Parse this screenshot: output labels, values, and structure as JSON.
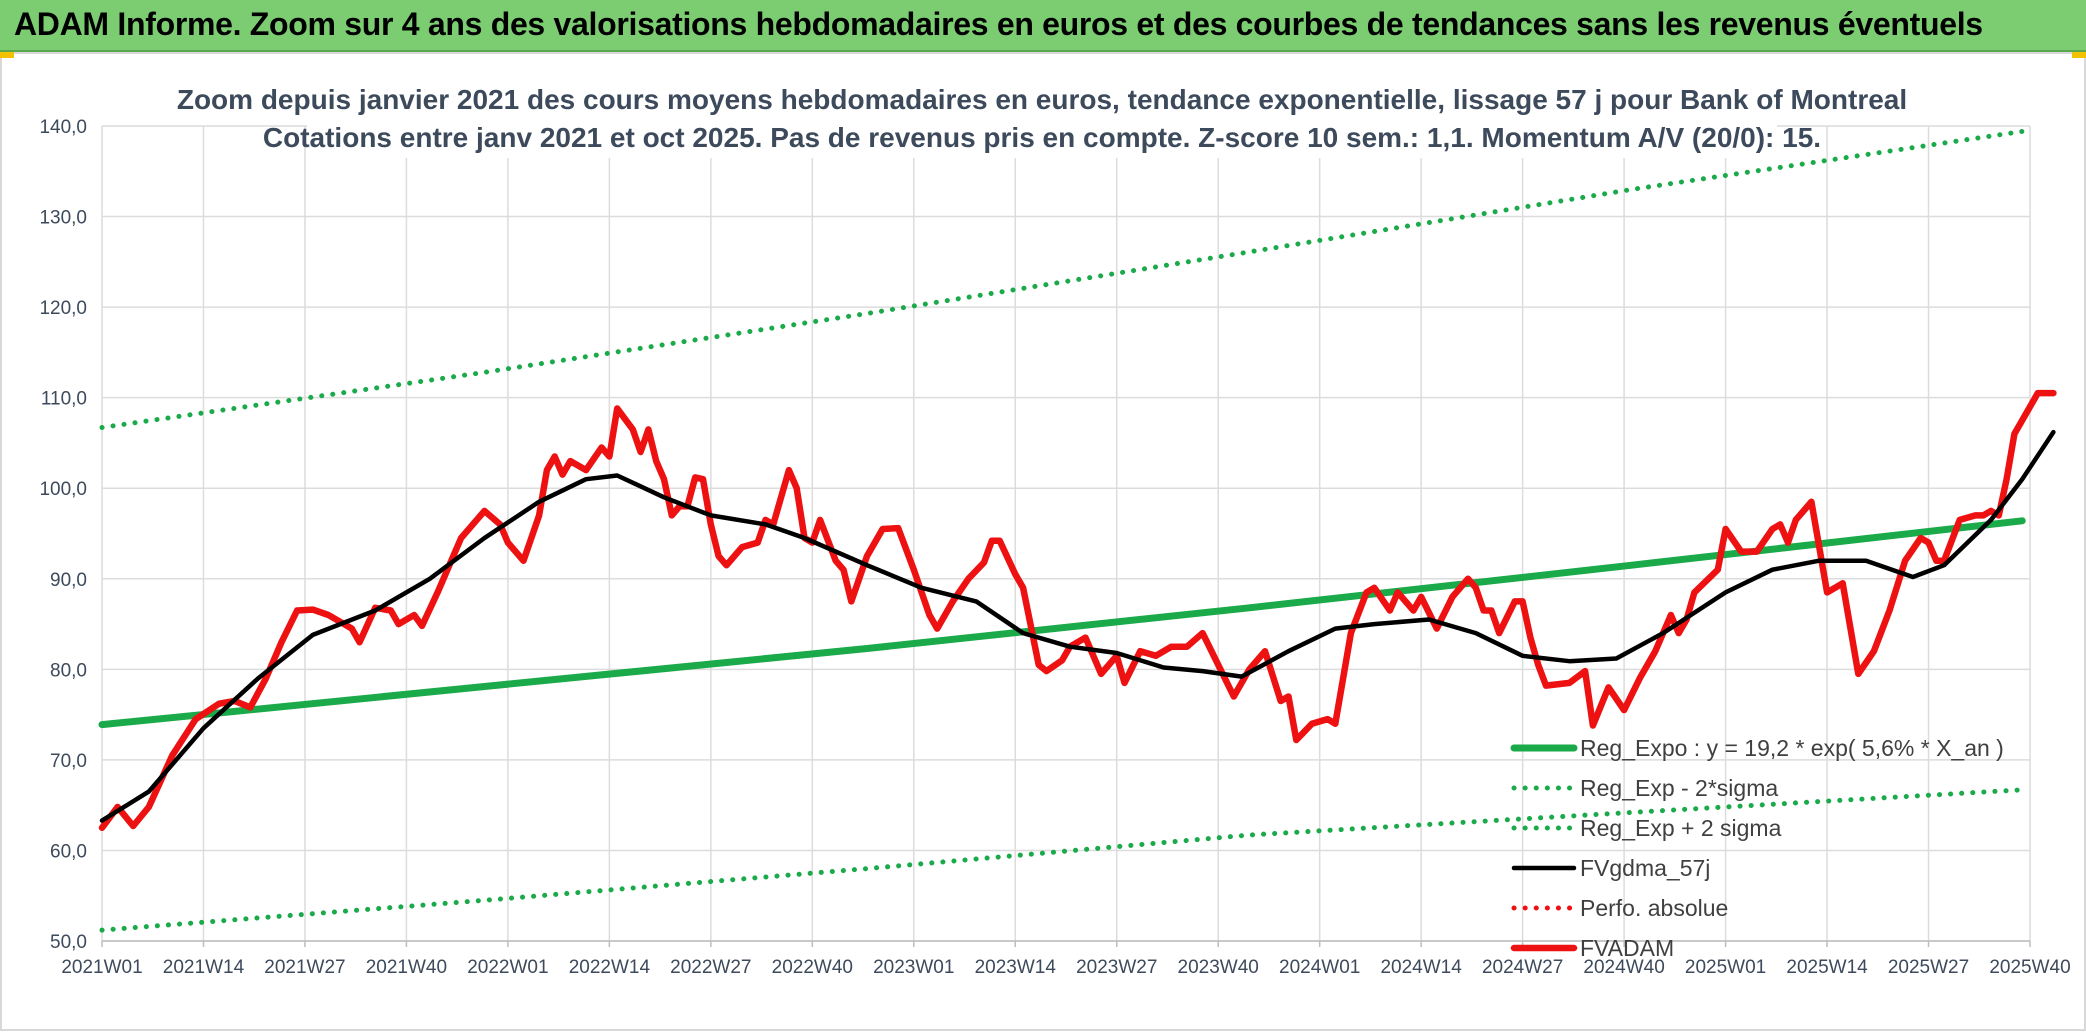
{
  "header": {
    "banner": "ADAM Informe. Zoom sur 4 ans des valorisations hebdomadaires en euros et des courbes de tendances sans les revenus éventuels"
  },
  "colors": {
    "banner_bg": "#7ccc72",
    "trend_green": "#1aaa4a",
    "price_red": "#ee1111",
    "smooth_black": "#000000"
  },
  "chart_data": {
    "type": "line",
    "title_lines": [
      "Zoom depuis janvier 2021 des cours moyens hebdomadaires en euros, tendance exponentielle, lissage 57 j pour Bank of Montreal",
      "Cotations entre janv 2021 et oct 2025. Pas de revenus pris en compte. Z-score 10 sem.: 1,1. Momentum A/V (20/0): 15."
    ],
    "xlabel": "",
    "ylabel": "",
    "ylim": [
      50,
      140
    ],
    "y_ticks": [
      "50,0",
      "60,0",
      "70,0",
      "80,0",
      "90,0",
      "100,0",
      "110,0",
      "120,0",
      "130,0",
      "140,0"
    ],
    "x_ticks": [
      "2021W01",
      "2021W14",
      "2021W27",
      "2021W40",
      "2022W01",
      "2022W14",
      "2022W27",
      "2022W40",
      "2023W01",
      "2023W14",
      "2023W27",
      "2023W40",
      "2024W01",
      "2024W14",
      "2024W27",
      "2024W40",
      "2025W01",
      "2025W14",
      "2025W27",
      "2025W40"
    ],
    "grid": true,
    "legend_position": "bottom-right",
    "series": [
      {
        "name": "Reg_Expo : y = 19,2 * exp( 5,6% *  X_an )",
        "style": "solid-thick",
        "color": "#1aaa4a",
        "points": [
          [
            0,
            73.9
          ],
          [
            49,
            78.1
          ],
          [
            98,
            82.3
          ],
          [
            147,
            86.8
          ],
          [
            196,
            91.5
          ],
          [
            246,
            96.4
          ]
        ]
      },
      {
        "name": "Reg_Exp - 2*sigma",
        "style": "dotted",
        "color": "#1aaa4a",
        "points": [
          [
            0,
            51.2
          ],
          [
            49,
            54.5
          ],
          [
            98,
            58.0
          ],
          [
            147,
            61.7
          ],
          [
            196,
            64.2
          ],
          [
            246,
            66.7
          ]
        ]
      },
      {
        "name": "Reg_Exp + 2 sigma",
        "style": "dotted",
        "color": "#1aaa4a",
        "points": [
          [
            0,
            106.7
          ],
          [
            49,
            112.8
          ],
          [
            98,
            119.3
          ],
          [
            147,
            126.1
          ],
          [
            196,
            133.0
          ],
          [
            246,
            139.4
          ]
        ]
      },
      {
        "name": "FVgdma_57j",
        "style": "solid",
        "color": "#000000",
        "points": [
          [
            0,
            63.3
          ],
          [
            6,
            66.5
          ],
          [
            13,
            73.5
          ],
          [
            20,
            79.0
          ],
          [
            27,
            83.8
          ],
          [
            35,
            86.5
          ],
          [
            42,
            90.0
          ],
          [
            49,
            94.5
          ],
          [
            56,
            98.5
          ],
          [
            62,
            101.0
          ],
          [
            66,
            101.4
          ],
          [
            72,
            99.0
          ],
          [
            78,
            97.0
          ],
          [
            85,
            96.0
          ],
          [
            90,
            94.5
          ],
          [
            98,
            91.5
          ],
          [
            105,
            89.0
          ],
          [
            112,
            87.5
          ],
          [
            118,
            84.0
          ],
          [
            124,
            82.5
          ],
          [
            130,
            81.8
          ],
          [
            136,
            80.2
          ],
          [
            141,
            79.8
          ],
          [
            146,
            79.2
          ],
          [
            152,
            82.0
          ],
          [
            158,
            84.5
          ],
          [
            163,
            85.0
          ],
          [
            170,
            85.5
          ],
          [
            176,
            84.0
          ],
          [
            182,
            81.5
          ],
          [
            188,
            80.9
          ],
          [
            194,
            81.2
          ],
          [
            200,
            84.0
          ],
          [
            208,
            88.5
          ],
          [
            214,
            91.0
          ],
          [
            220,
            92.0
          ],
          [
            226,
            92.0
          ],
          [
            232,
            90.2
          ],
          [
            236,
            91.5
          ],
          [
            242,
            96.5
          ],
          [
            246,
            101.0
          ],
          [
            250,
            106.2
          ]
        ]
      },
      {
        "name": "Perfo. absolue",
        "style": "dotted",
        "color": "#ee1111",
        "points": []
      },
      {
        "name": "FVADAM",
        "style": "solid-thick",
        "color": "#ee1111",
        "points": [
          [
            0,
            62.5
          ],
          [
            2,
            64.8
          ],
          [
            4,
            62.7
          ],
          [
            6,
            64.8
          ],
          [
            9,
            70.5
          ],
          [
            12,
            74.5
          ],
          [
            15,
            76.2
          ],
          [
            17,
            76.5
          ],
          [
            19,
            75.8
          ],
          [
            21,
            79.0
          ],
          [
            23,
            83.0
          ],
          [
            25,
            86.5
          ],
          [
            27,
            86.6
          ],
          [
            29,
            86.0
          ],
          [
            32,
            84.5
          ],
          [
            33,
            83.0
          ],
          [
            35,
            86.8
          ],
          [
            37,
            86.5
          ],
          [
            38,
            85.0
          ],
          [
            40,
            86.0
          ],
          [
            41,
            84.8
          ],
          [
            43,
            88.5
          ],
          [
            46,
            94.5
          ],
          [
            47,
            95.5
          ],
          [
            49,
            97.5
          ],
          [
            51,
            96.0
          ],
          [
            52,
            94.0
          ],
          [
            54,
            92.0
          ],
          [
            56,
            97.0
          ],
          [
            57,
            102.0
          ],
          [
            58,
            103.5
          ],
          [
            59,
            101.5
          ],
          [
            60,
            103.0
          ],
          [
            62,
            102.0
          ],
          [
            64,
            104.5
          ],
          [
            65,
            103.5
          ],
          [
            66,
            108.8
          ],
          [
            68,
            106.5
          ],
          [
            69,
            104.0
          ],
          [
            70,
            106.5
          ],
          [
            71,
            103.0
          ],
          [
            72,
            101.0
          ],
          [
            73,
            97.0
          ],
          [
            74,
            98.0
          ],
          [
            75,
            98.0
          ],
          [
            76,
            101.2
          ],
          [
            77,
            101.0
          ],
          [
            78,
            96.0
          ],
          [
            79,
            92.5
          ],
          [
            80,
            91.5
          ],
          [
            82,
            93.5
          ],
          [
            84,
            94.0
          ],
          [
            85,
            96.5
          ],
          [
            86,
            96.0
          ],
          [
            88,
            102.0
          ],
          [
            89,
            100.0
          ],
          [
            90,
            94.5
          ],
          [
            91,
            94.0
          ],
          [
            92,
            96.5
          ],
          [
            94,
            92.0
          ],
          [
            95,
            91.0
          ],
          [
            96,
            87.5
          ],
          [
            98,
            92.5
          ],
          [
            100,
            95.5
          ],
          [
            102,
            95.6
          ],
          [
            104,
            91.0
          ],
          [
            106,
            86.0
          ],
          [
            107,
            84.5
          ],
          [
            109,
            87.5
          ],
          [
            111,
            90.0
          ],
          [
            113,
            91.8
          ],
          [
            114,
            94.2
          ],
          [
            115,
            94.2
          ],
          [
            117,
            90.5
          ],
          [
            118,
            89.0
          ],
          [
            120,
            80.5
          ],
          [
            121,
            79.8
          ],
          [
            123,
            81.0
          ],
          [
            124,
            82.5
          ],
          [
            126,
            83.5
          ],
          [
            128,
            79.5
          ],
          [
            130,
            81.5
          ],
          [
            131,
            78.5
          ],
          [
            133,
            82.0
          ],
          [
            135,
            81.5
          ],
          [
            137,
            82.5
          ],
          [
            139,
            82.5
          ],
          [
            141,
            84.0
          ],
          [
            143,
            80.5
          ],
          [
            145,
            77.0
          ],
          [
            147,
            80.0
          ],
          [
            149,
            82.0
          ],
          [
            151,
            76.5
          ],
          [
            152,
            77.0
          ],
          [
            153,
            72.2
          ],
          [
            155,
            74.0
          ],
          [
            157,
            74.5
          ],
          [
            158,
            74.0
          ],
          [
            160,
            84.0
          ],
          [
            162,
            88.5
          ],
          [
            163,
            89.0
          ],
          [
            165,
            86.5
          ],
          [
            166,
            88.5
          ],
          [
            168,
            86.5
          ],
          [
            169,
            88.0
          ],
          [
            171,
            84.5
          ],
          [
            173,
            88.0
          ],
          [
            175,
            90.0
          ],
          [
            176,
            89.0
          ],
          [
            177,
            86.5
          ],
          [
            178,
            86.5
          ],
          [
            179,
            84.0
          ],
          [
            181,
            87.5
          ],
          [
            182,
            87.5
          ],
          [
            183,
            83.5
          ],
          [
            184,
            80.5
          ],
          [
            185,
            78.2
          ],
          [
            188,
            78.5
          ],
          [
            190,
            79.8
          ],
          [
            191,
            73.8
          ],
          [
            193,
            78.0
          ],
          [
            195,
            75.5
          ],
          [
            197,
            79.0
          ],
          [
            199,
            82.0
          ],
          [
            201,
            86.0
          ],
          [
            202,
            84.0
          ],
          [
            203,
            85.5
          ],
          [
            204,
            88.5
          ],
          [
            207,
            91.0
          ],
          [
            208,
            95.5
          ],
          [
            210,
            93.0
          ],
          [
            212,
            93.0
          ],
          [
            214,
            95.5
          ],
          [
            215,
            96.0
          ],
          [
            216,
            94.0
          ],
          [
            217,
            96.5
          ],
          [
            219,
            98.5
          ],
          [
            221,
            88.5
          ],
          [
            223,
            89.5
          ],
          [
            225,
            79.5
          ],
          [
            227,
            82.0
          ],
          [
            229,
            86.5
          ],
          [
            231,
            92.0
          ],
          [
            233,
            94.5
          ],
          [
            234,
            94.0
          ],
          [
            235,
            92.0
          ],
          [
            236,
            92.0
          ],
          [
            238,
            96.5
          ],
          [
            240,
            97.0
          ],
          [
            241,
            97.0
          ],
          [
            242,
            97.5
          ],
          [
            243,
            97.0
          ],
          [
            244,
            101.0
          ],
          [
            245,
            106.0
          ],
          [
            247,
            109.0
          ],
          [
            248,
            110.5
          ],
          [
            250,
            110.5
          ]
        ]
      }
    ]
  }
}
